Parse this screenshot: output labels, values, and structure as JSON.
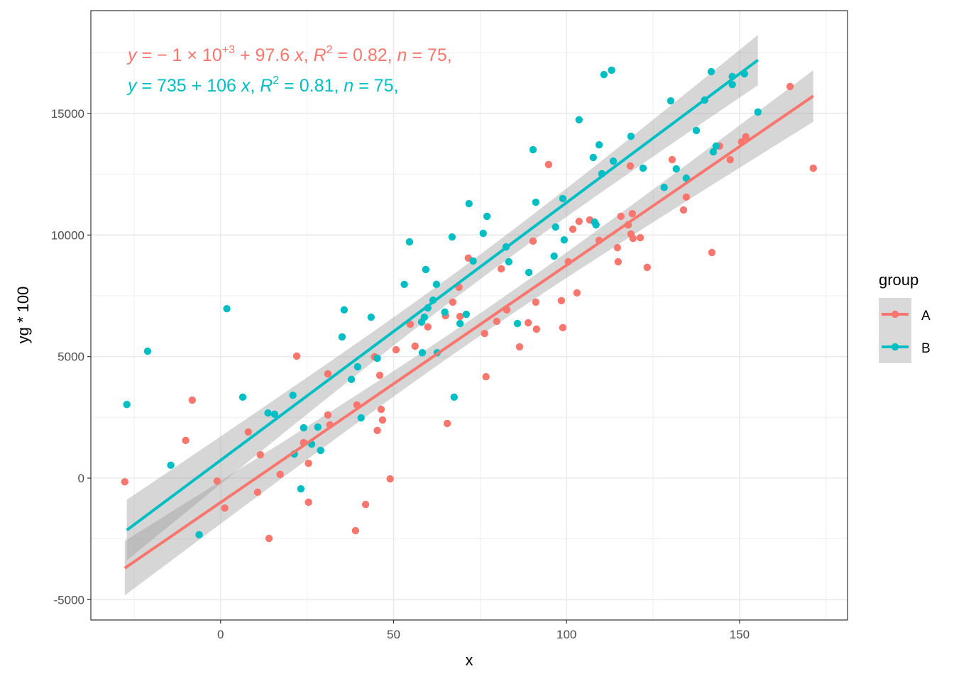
{
  "chart_data": {
    "type": "scatter",
    "xlabel": "x",
    "ylabel": "yg * 100",
    "xlim": [
      -37.5,
      181.2
    ],
    "ylim": [
      -5836,
      19230
    ],
    "x_ticks": [
      0,
      50,
      100,
      150
    ],
    "y_ticks": [
      -5000,
      0,
      5000,
      10000,
      15000
    ],
    "x_tick_labels": [
      "0",
      "50",
      "100",
      "150"
    ],
    "y_tick_labels": [
      "-5000",
      "0",
      "5000",
      "10000",
      "15000"
    ],
    "grid": true,
    "legend": {
      "title": "group",
      "position": "right",
      "entries": [
        "A",
        "B"
      ]
    },
    "series": [
      {
        "name": "A",
        "color": "#F8766D",
        "fit": {
          "intercept": -1000,
          "slope": 97.6
        },
        "equation": [
          {
            "t": "y",
            "i": true
          },
          {
            "t": " = − 1 × 10"
          },
          {
            "t": "+3",
            "sup": true
          },
          {
            "t": " + 97.6 "
          },
          {
            "t": "x",
            "i": true
          },
          {
            "t": ", "
          },
          {
            "t": "R",
            "i": true
          },
          {
            "t": "2",
            "sup": true
          },
          {
            "t": " = 0.82, "
          },
          {
            "t": "n",
            "i": true
          },
          {
            "t": " = 75,"
          }
        ],
        "points": [
          [
            -27.7,
            -150
          ],
          [
            -10.1,
            1550
          ],
          [
            -8.2,
            3210
          ],
          [
            -1.0,
            -120
          ],
          [
            1.2,
            -1230
          ],
          [
            8.0,
            1900
          ],
          [
            10.7,
            -580
          ],
          [
            11.5,
            960
          ],
          [
            14.0,
            -2480
          ],
          [
            17.2,
            150
          ],
          [
            22.0,
            5020
          ],
          [
            24.0,
            1460
          ],
          [
            25.4,
            610
          ],
          [
            25.4,
            -990
          ],
          [
            31.0,
            4290
          ],
          [
            31.0,
            2600
          ],
          [
            31.6,
            2190
          ],
          [
            39.0,
            -2160
          ],
          [
            39.4,
            3010
          ],
          [
            41.9,
            -1080
          ],
          [
            44.5,
            4990
          ],
          [
            45.3,
            1960
          ],
          [
            46.0,
            4230
          ],
          [
            46.4,
            2830
          ],
          [
            46.8,
            2390
          ],
          [
            49.0,
            -30
          ],
          [
            50.7,
            5280
          ],
          [
            54.8,
            6330
          ],
          [
            56.2,
            5430
          ],
          [
            59.9,
            6220
          ],
          [
            65.0,
            6680
          ],
          [
            65.5,
            2250
          ],
          [
            67.1,
            7240
          ],
          [
            68.9,
            7850
          ],
          [
            69.2,
            6650
          ],
          [
            71.6,
            9050
          ],
          [
            76.3,
            5950
          ],
          [
            76.7,
            4170
          ],
          [
            79.8,
            6450
          ],
          [
            81.1,
            8610
          ],
          [
            82.7,
            6920
          ],
          [
            86.4,
            5400
          ],
          [
            88.9,
            6390
          ],
          [
            90.3,
            9750
          ],
          [
            91.1,
            7240
          ],
          [
            91.3,
            6130
          ],
          [
            94.8,
            12900
          ],
          [
            98.5,
            7300
          ],
          [
            98.9,
            6190
          ],
          [
            100.5,
            8900
          ],
          [
            101.8,
            10240
          ],
          [
            103.0,
            7620
          ],
          [
            103.6,
            10560
          ],
          [
            106.7,
            10620
          ],
          [
            109.4,
            9780
          ],
          [
            114.7,
            9480
          ],
          [
            114.9,
            8900
          ],
          [
            115.7,
            10770
          ],
          [
            117.8,
            10420
          ],
          [
            118.4,
            12840
          ],
          [
            118.6,
            10040
          ],
          [
            119.0,
            10880
          ],
          [
            119.2,
            9860
          ],
          [
            121.3,
            9890
          ],
          [
            123.3,
            8670
          ],
          [
            130.5,
            13100
          ],
          [
            133.8,
            11030
          ],
          [
            134.6,
            11560
          ],
          [
            142.0,
            9280
          ],
          [
            144.2,
            13660
          ],
          [
            147.3,
            13100
          ],
          [
            150.6,
            13830
          ],
          [
            151.8,
            14040
          ],
          [
            164.6,
            16110
          ],
          [
            171.3,
            12750
          ]
        ]
      },
      {
        "name": "B",
        "color": "#00BFC4",
        "fit": {
          "intercept": 735,
          "slope": 106
        },
        "equation": [
          {
            "t": "y",
            "i": true
          },
          {
            "t": " = 735 + 106 "
          },
          {
            "t": "x",
            "i": true
          },
          {
            "t": ", "
          },
          {
            "t": "R",
            "i": true
          },
          {
            "t": "2",
            "sup": true
          },
          {
            "t": " = 0.81, "
          },
          {
            "t": "n",
            "i": true
          },
          {
            "t": " = 75,"
          }
        ],
        "points": [
          [
            -27.1,
            3030
          ],
          [
            -21.1,
            5220
          ],
          [
            -14.4,
            530
          ],
          [
            -6.2,
            -2330
          ],
          [
            1.8,
            6970
          ],
          [
            6.4,
            3330
          ],
          [
            13.7,
            2680
          ],
          [
            15.6,
            2630
          ],
          [
            20.9,
            3410
          ],
          [
            21.3,
            990
          ],
          [
            23.2,
            -440
          ],
          [
            24.0,
            2070
          ],
          [
            26.3,
            1400
          ],
          [
            28.1,
            2100
          ],
          [
            28.9,
            1140
          ],
          [
            35.1,
            5810
          ],
          [
            35.7,
            6920
          ],
          [
            37.8,
            4060
          ],
          [
            39.6,
            4580
          ],
          [
            40.6,
            2480
          ],
          [
            43.5,
            6620
          ],
          [
            45.3,
            4930
          ],
          [
            53.1,
            7970
          ],
          [
            54.6,
            9720
          ],
          [
            58.1,
            6420
          ],
          [
            58.3,
            5160
          ],
          [
            58.9,
            6620
          ],
          [
            59.3,
            8580
          ],
          [
            59.9,
            7000
          ],
          [
            61.4,
            7320
          ],
          [
            62.4,
            7970
          ],
          [
            62.6,
            5160
          ],
          [
            64.8,
            6830
          ],
          [
            66.9,
            9920
          ],
          [
            67.5,
            3330
          ],
          [
            69.2,
            6360
          ],
          [
            71.0,
            6740
          ],
          [
            71.8,
            11290
          ],
          [
            73.0,
            8930
          ],
          [
            75.9,
            10070
          ],
          [
            77.0,
            10770
          ],
          [
            82.5,
            9510
          ],
          [
            83.3,
            8900
          ],
          [
            85.8,
            6360
          ],
          [
            89.1,
            8460
          ],
          [
            90.3,
            13510
          ],
          [
            91.1,
            11350
          ],
          [
            96.4,
            9130
          ],
          [
            96.8,
            10330
          ],
          [
            98.9,
            11500
          ],
          [
            99.3,
            9800
          ],
          [
            103.6,
            14740
          ],
          [
            107.7,
            13190
          ],
          [
            108.1,
            10530
          ],
          [
            108.5,
            10420
          ],
          [
            109.4,
            13710
          ],
          [
            110.2,
            12520
          ],
          [
            110.8,
            16600
          ],
          [
            113.0,
            16780
          ],
          [
            113.5,
            13040
          ],
          [
            118.6,
            14060
          ],
          [
            122.1,
            12750
          ],
          [
            128.2,
            11960
          ],
          [
            130.1,
            15520
          ],
          [
            131.7,
            12720
          ],
          [
            134.6,
            12340
          ],
          [
            137.5,
            14300
          ],
          [
            139.9,
            15550
          ],
          [
            141.8,
            16720
          ],
          [
            142.4,
            13420
          ],
          [
            143.2,
            13660
          ],
          [
            147.9,
            16520
          ],
          [
            147.9,
            16190
          ],
          [
            151.4,
            16630
          ],
          [
            155.3,
            15060
          ]
        ]
      }
    ]
  }
}
